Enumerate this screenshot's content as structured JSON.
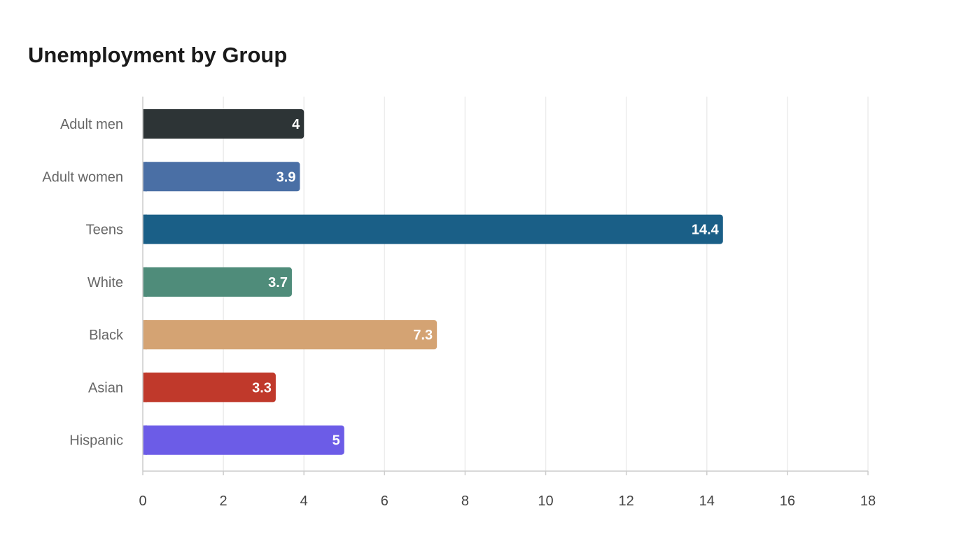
{
  "chart_data": {
    "type": "bar",
    "orientation": "horizontal",
    "title": "Unemployment by Group",
    "xlabel": "",
    "ylabel": "",
    "xlim": [
      0,
      18
    ],
    "x_ticks": [
      0,
      2,
      4,
      6,
      8,
      10,
      12,
      14,
      16,
      18
    ],
    "grid": true,
    "legend": "none",
    "categories": [
      "Adult men",
      "Adult women",
      "Teens",
      "White",
      "Black",
      "Asian",
      "Hispanic"
    ],
    "values": [
      4.0,
      3.9,
      14.4,
      3.7,
      7.3,
      3.3,
      5.0
    ],
    "value_labels": [
      "4",
      "3.9",
      "14.4",
      "3.7",
      "7.3",
      "3.3",
      "5"
    ],
    "colors": [
      "#2d3436",
      "#4a6fa5",
      "#1a5f87",
      "#4f8c7a",
      "#d4a373",
      "#c0392b",
      "#6c5ce7"
    ]
  }
}
